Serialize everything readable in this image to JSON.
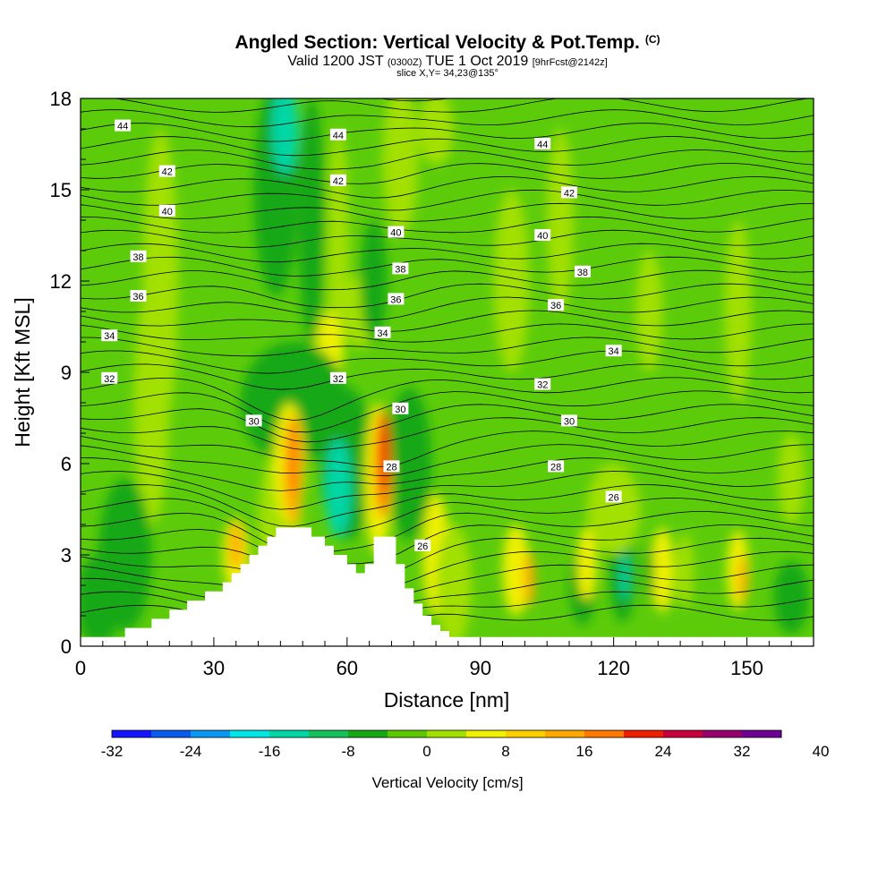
{
  "header": {
    "title": "Angled Section: Vertical Velocity & Pot.Temp.",
    "title_tag": "(C)",
    "valid_prefix": "Valid 1200 JST",
    "valid_zulu": "(0300Z)",
    "valid_date": "TUE 1 Oct 2019",
    "valid_fcst": "[9hrFcst@2142z]",
    "slice": "slice X,Y= 34,23@135°"
  },
  "colorbar": {
    "label": "Vertical Velocity [cm/s]",
    "tick_labels": [
      "-32",
      "-24",
      "-16",
      "-8",
      "0",
      "8",
      "16",
      "24",
      "32",
      "40"
    ],
    "colors": [
      "#1414ff",
      "#0a5cf0",
      "#0a96f5",
      "#00e6e6",
      "#00d6a6",
      "#14c25a",
      "#14a814",
      "#5cc800",
      "#a2e000",
      "#f0f000",
      "#ffd000",
      "#ffa800",
      "#ff7800",
      "#f01e00",
      "#c8003c",
      "#96006e",
      "#6e0096"
    ]
  },
  "chart_data": {
    "type": "heatmap",
    "title": "Angled Section: Vertical Velocity & Pot.Temp.",
    "xlabel": "Distance [nm]",
    "ylabel": "Height [Kft MSL]",
    "xlim": [
      0,
      165
    ],
    "ylim": [
      0,
      18
    ],
    "x_ticks": [
      0,
      30,
      60,
      90,
      120,
      150
    ],
    "y_ticks": [
      0,
      3,
      6,
      9,
      12,
      15,
      18
    ],
    "color_variable": "Vertical Velocity [cm/s]",
    "color_levels": [
      -32,
      -28,
      -24,
      -20,
      -16,
      -12,
      -8,
      -4,
      0,
      4,
      8,
      12,
      16,
      20,
      24,
      28,
      32,
      36,
      40
    ],
    "contour_variable": "Potential temperature",
    "contour_labels": [
      {
        "x": 9.5,
        "y": 17.1,
        "v": "44"
      },
      {
        "x": 58,
        "y": 16.8,
        "v": "44"
      },
      {
        "x": 104,
        "y": 16.5,
        "v": "44"
      },
      {
        "x": 19.5,
        "y": 15.6,
        "v": "42"
      },
      {
        "x": 58,
        "y": 15.3,
        "v": "42"
      },
      {
        "x": 110,
        "y": 14.9,
        "v": "42"
      },
      {
        "x": 19.5,
        "y": 14.3,
        "v": "40"
      },
      {
        "x": 71,
        "y": 13.6,
        "v": "40"
      },
      {
        "x": 104,
        "y": 13.5,
        "v": "40"
      },
      {
        "x": 13,
        "y": 12.8,
        "v": "38"
      },
      {
        "x": 72,
        "y": 12.4,
        "v": "38"
      },
      {
        "x": 113,
        "y": 12.3,
        "v": "38"
      },
      {
        "x": 13,
        "y": 11.5,
        "v": "36"
      },
      {
        "x": 71,
        "y": 11.4,
        "v": "36"
      },
      {
        "x": 107,
        "y": 11.2,
        "v": "36"
      },
      {
        "x": 6.5,
        "y": 10.2,
        "v": "34"
      },
      {
        "x": 68,
        "y": 10.3,
        "v": "34"
      },
      {
        "x": 120,
        "y": 9.7,
        "v": "34"
      },
      {
        "x": 6.5,
        "y": 8.8,
        "v": "32"
      },
      {
        "x": 58,
        "y": 8.8,
        "v": "32"
      },
      {
        "x": 104,
        "y": 8.6,
        "v": "32"
      },
      {
        "x": 39,
        "y": 7.4,
        "v": "30"
      },
      {
        "x": 72,
        "y": 7.8,
        "v": "30"
      },
      {
        "x": 110,
        "y": 7.4,
        "v": "30"
      },
      {
        "x": 70,
        "y": 5.9,
        "v": "28"
      },
      {
        "x": 107,
        "y": 5.9,
        "v": "28"
      },
      {
        "x": 120,
        "y": 4.9,
        "v": "26"
      },
      {
        "x": 77,
        "y": 3.3,
        "v": "26"
      }
    ],
    "terrain_profile": {
      "x": [
        0,
        10,
        10,
        16,
        16,
        20,
        20,
        24,
        24,
        28,
        28,
        32,
        32,
        34,
        34,
        36,
        36,
        38,
        38,
        40,
        40,
        42,
        42,
        44,
        44,
        46,
        46,
        48,
        48,
        52,
        52,
        55,
        55,
        57,
        57,
        60,
        60,
        62,
        62,
        64,
        64,
        66,
        66,
        71,
        71,
        73,
        73,
        75,
        75,
        77,
        77,
        79,
        79,
        81,
        81,
        83,
        83,
        85,
        85,
        165
      ],
      "y": [
        0.3,
        0.3,
        0.6,
        0.6,
        0.9,
        0.9,
        1.2,
        1.2,
        1.5,
        1.5,
        1.8,
        1.8,
        2.1,
        2.1,
        2.4,
        2.4,
        2.7,
        2.7,
        3.0,
        3.0,
        3.3,
        3.3,
        3.6,
        3.6,
        3.9,
        3.9,
        3.9,
        3.9,
        3.9,
        3.9,
        3.6,
        3.6,
        3.3,
        3.3,
        3.0,
        3.0,
        2.7,
        2.7,
        2.4,
        2.4,
        2.7,
        2.7,
        3.6,
        3.6,
        2.7,
        2.7,
        1.9,
        1.9,
        1.4,
        1.4,
        1.0,
        1.0,
        0.7,
        0.7,
        0.5,
        0.5,
        0.3,
        0.3,
        0.3,
        0.3
      ]
    }
  }
}
